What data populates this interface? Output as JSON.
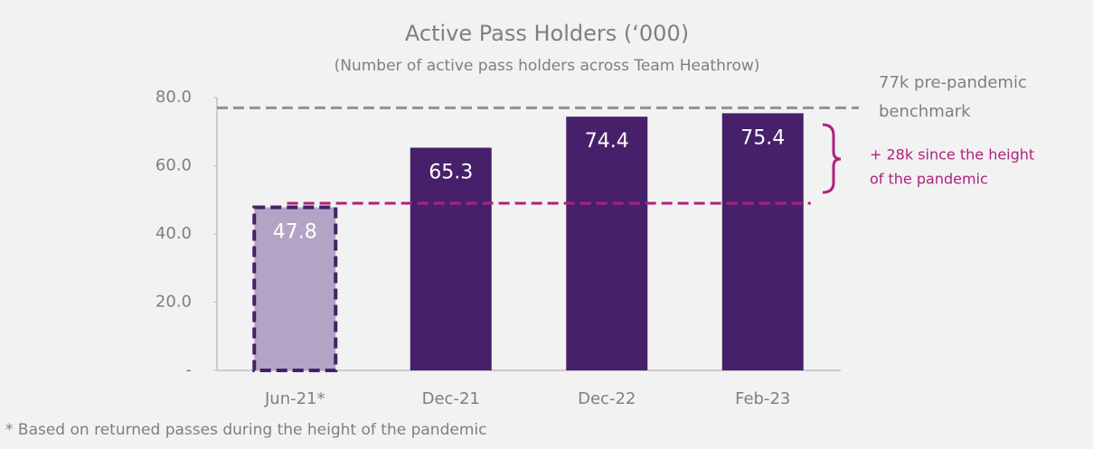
{
  "chart_data": {
    "type": "bar",
    "title": "Active Pass Holders (‘000)",
    "subtitle": "(Number of active pass holders across Team Heathrow)",
    "categories": [
      "Jun-21*",
      "Dec-21",
      "Dec-22",
      "Feb-23"
    ],
    "values": [
      47.8,
      65.3,
      74.4,
      75.4
    ],
    "colors": [
      "#b3a4c5",
      "#47206b",
      "#47206b",
      "#47206b"
    ],
    "dashed_outline": [
      true,
      false,
      false,
      false
    ],
    "outline_color": "#47206b",
    "ylim": [
      0,
      80
    ],
    "yticks": [
      {
        "value": 0,
        "label": "-"
      },
      {
        "value": 20,
        "label": "20.0"
      },
      {
        "value": 40,
        "label": "40.0"
      },
      {
        "value": 60,
        "label": "60.0"
      },
      {
        "value": 80,
        "label": "80.0"
      }
    ],
    "reference_lines": [
      {
        "value": 77,
        "color": "#8a939c",
        "label": [
          "77k pre-pandemic",
          "benchmark"
        ]
      },
      {
        "value": 49,
        "color": "#b0207f",
        "label": [
          "+ 28k since the height",
          "of the pandemic"
        ]
      }
    ],
    "footnote": "* Based on returned passes during the height of the pandemic"
  }
}
